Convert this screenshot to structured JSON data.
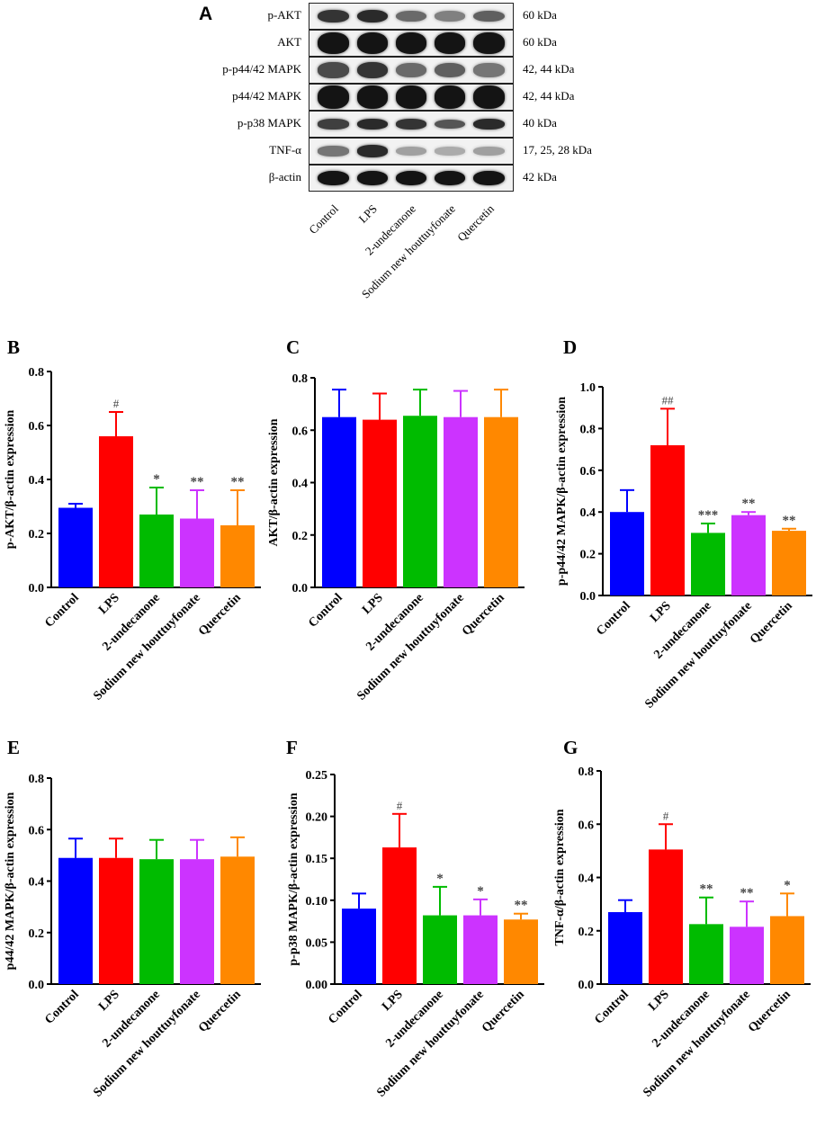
{
  "panel_a": {
    "letter": "A",
    "lane_labels": [
      "Control",
      "LPS",
      "2-undecanone",
      "Sodium new houttuyfonate",
      "Quercetin"
    ],
    "rows": [
      {
        "label": "p-AKT",
        "size": "60 kDa",
        "intensity": [
          0.85,
          0.9,
          0.6,
          0.5,
          0.65
        ],
        "thickness": 0.55
      },
      {
        "label": "AKT",
        "size": "60 kDa",
        "intensity": [
          1.0,
          1.0,
          1.0,
          1.0,
          1.0
        ],
        "thickness": 0.85
      },
      {
        "label": "p-p44/42 MAPK",
        "size": "42, 44 kDa",
        "intensity": [
          0.75,
          0.85,
          0.6,
          0.65,
          0.55
        ],
        "thickness": 0.7
      },
      {
        "label": "p44/42 MAPK",
        "size": "42, 44 kDa",
        "intensity": [
          1.0,
          1.0,
          1.0,
          1.0,
          1.0
        ],
        "thickness": 0.9
      },
      {
        "label": "p-p38 MAPK",
        "size": "40 kDa",
        "intensity": [
          0.8,
          0.9,
          0.85,
          0.7,
          0.9
        ],
        "thickness": 0.45
      },
      {
        "label": "TNF-α",
        "size": "17, 25, 28 kDa",
        "intensity": [
          0.55,
          0.9,
          0.35,
          0.3,
          0.35
        ],
        "thickness": 0.5
      },
      {
        "label": "β-actin",
        "size": "42 kDa",
        "intensity": [
          1.0,
          1.0,
          1.0,
          1.0,
          1.0
        ],
        "thickness": 0.6
      }
    ]
  },
  "colors": {
    "Control": "#0000ff",
    "LPS": "#ff0000",
    "2-undecanone": "#00bb00",
    "Sodium new houttuyfonate": "#cc33ff",
    "Quercetin": "#ff8800",
    "axis": "#000000",
    "annotation": "#444444"
  },
  "chart_data": [
    {
      "id": "B",
      "type": "bar",
      "letter": "B",
      "categories": [
        "Control",
        "LPS",
        "2-undecanone",
        "Sodium new houttuyfonate",
        "Quercetin"
      ],
      "values": [
        0.295,
        0.56,
        0.27,
        0.255,
        0.23
      ],
      "errors": [
        0.015,
        0.09,
        0.1,
        0.105,
        0.13
      ],
      "annotations": [
        "",
        "#",
        "*",
        "**",
        "**"
      ],
      "ylabel": "p-AKT/β-actin expression",
      "ylim": [
        0,
        0.8
      ],
      "yticks": [
        "0.0",
        "0.2",
        "0.4",
        "0.6",
        "0.8"
      ]
    },
    {
      "id": "C",
      "type": "bar",
      "letter": "C",
      "categories": [
        "Control",
        "LPS",
        "2-undecanone",
        "Sodium new houttuyfonate",
        "Quercetin"
      ],
      "values": [
        0.65,
        0.64,
        0.655,
        0.65,
        0.65
      ],
      "errors": [
        0.105,
        0.1,
        0.1,
        0.1,
        0.105
      ],
      "annotations": [
        "",
        "",
        "",
        "",
        ""
      ],
      "ylabel": "AKT/β-actin expression",
      "ylim": [
        0,
        0.8
      ],
      "yticks": [
        "0.0",
        "0.2",
        "0.4",
        "0.6",
        "0.8"
      ]
    },
    {
      "id": "D",
      "type": "bar",
      "letter": "D",
      "categories": [
        "Control",
        "LPS",
        "2-undecanone",
        "Sodium new houttuyfonate",
        "Quercetin"
      ],
      "values": [
        0.4,
        0.72,
        0.3,
        0.385,
        0.31
      ],
      "errors": [
        0.105,
        0.175,
        0.045,
        0.015,
        0.01
      ],
      "annotations": [
        "",
        "##",
        "***",
        "**",
        "**"
      ],
      "ylabel": "p-p44/42 MAPK/β-actin expression",
      "ylim": [
        0,
        1.0
      ],
      "yticks": [
        "0.0",
        "0.2",
        "0.4",
        "0.6",
        "0.8",
        "1.0"
      ]
    },
    {
      "id": "E",
      "type": "bar",
      "letter": "E",
      "categories": [
        "Control",
        "LPS",
        "2-undecanone",
        "Sodium new houttuyfonate",
        "Quercetin"
      ],
      "values": [
        0.49,
        0.49,
        0.485,
        0.485,
        0.495
      ],
      "errors": [
        0.075,
        0.075,
        0.075,
        0.075,
        0.075
      ],
      "annotations": [
        "",
        "",
        "",
        "",
        ""
      ],
      "ylabel": "p44/42 MAPK/β-actin expression",
      "ylim": [
        0,
        0.8
      ],
      "yticks": [
        "0.0",
        "0.2",
        "0.4",
        "0.6",
        "0.8"
      ]
    },
    {
      "id": "F",
      "type": "bar",
      "letter": "F",
      "categories": [
        "Control",
        "LPS",
        "2-undecanone",
        "Sodium new houttuyfonate",
        "Quercetin"
      ],
      "values": [
        0.09,
        0.163,
        0.082,
        0.082,
        0.077
      ],
      "errors": [
        0.018,
        0.04,
        0.034,
        0.019,
        0.007
      ],
      "annotations": [
        "",
        "#",
        "*",
        "*",
        "**"
      ],
      "ylabel": "p-p38 MAPK/β-actin expression",
      "ylim": [
        0,
        0.25
      ],
      "yticks": [
        "0.00",
        "0.05",
        "0.10",
        "0.15",
        "0.20",
        "0.25"
      ]
    },
    {
      "id": "G",
      "type": "bar",
      "letter": "G",
      "categories": [
        "Control",
        "LPS",
        "2-undecanone",
        "Sodium new houttuyfonate",
        "Quercetin"
      ],
      "values": [
        0.27,
        0.505,
        0.225,
        0.215,
        0.255
      ],
      "errors": [
        0.045,
        0.095,
        0.1,
        0.095,
        0.085
      ],
      "annotations": [
        "",
        "#",
        "**",
        "**",
        "*"
      ],
      "ylabel": "TNF-α/β-actin expression",
      "ylim": [
        0,
        0.8
      ],
      "yticks": [
        "0.0",
        "0.2",
        "0.4",
        "0.6",
        "0.8"
      ]
    }
  ]
}
